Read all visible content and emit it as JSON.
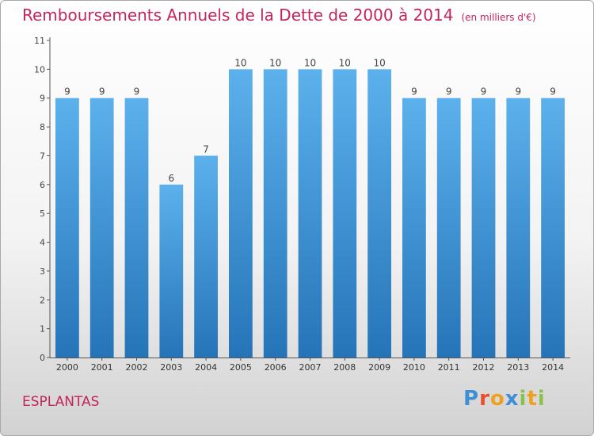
{
  "title": "Remboursements Annuels de la Dette de 2000 à 2014",
  "unit_label": "(en milliers d'€)",
  "commune": "ESPLANTAS",
  "logo": {
    "letters": [
      "P",
      "r",
      "o",
      "x",
      "i",
      "t",
      "i"
    ],
    "colors": [
      "#3e8fd6",
      "#e84f2a",
      "#f0a020",
      "#3e8fd6",
      "#8bc34a",
      "#f0a020",
      "#8bc34a"
    ]
  },
  "colors": {
    "title": "#c4245c",
    "bar_top": "#5cb1ec",
    "bar_bottom": "#2574b8"
  },
  "chart_data": {
    "type": "bar",
    "categories": [
      "2000",
      "2001",
      "2002",
      "2003",
      "2004",
      "2005",
      "2006",
      "2007",
      "2008",
      "2009",
      "2010",
      "2011",
      "2012",
      "2013",
      "2014"
    ],
    "values": [
      9,
      9,
      9,
      6,
      7,
      10,
      10,
      10,
      10,
      10,
      9,
      9,
      9,
      9,
      9
    ],
    "yticks": [
      "0",
      "1",
      "2",
      "3",
      "4",
      "5",
      "6",
      "7",
      "8",
      "9",
      "10",
      "11"
    ],
    "ylim": [
      0,
      11
    ],
    "grid": false
  }
}
